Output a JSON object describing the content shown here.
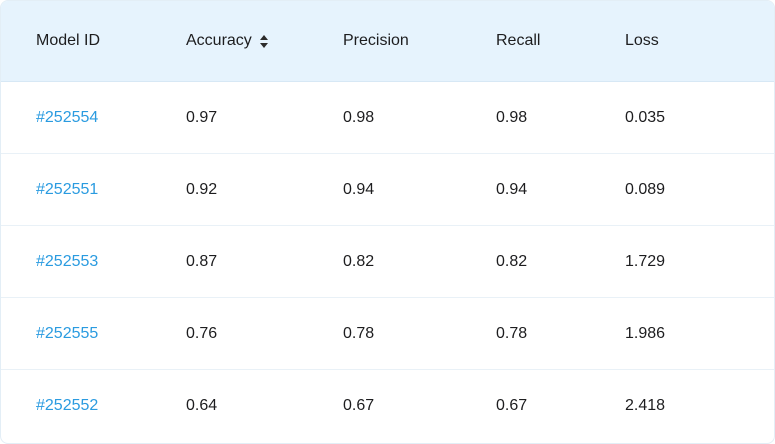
{
  "table": {
    "columns": [
      {
        "label": "Model ID",
        "sortable": false
      },
      {
        "label": "Accuracy",
        "sortable": true
      },
      {
        "label": "Precision",
        "sortable": false
      },
      {
        "label": "Recall",
        "sortable": false
      },
      {
        "label": "Loss",
        "sortable": false
      }
    ],
    "rows": [
      {
        "model_id": "#252554",
        "accuracy": "0.97",
        "precision": "0.98",
        "recall": "0.98",
        "loss": "0.035"
      },
      {
        "model_id": "#252551",
        "accuracy": "0.92",
        "precision": "0.94",
        "recall": "0.94",
        "loss": "0.089"
      },
      {
        "model_id": "#252553",
        "accuracy": "0.87",
        "precision": "0.82",
        "recall": "0.82",
        "loss": "1.729"
      },
      {
        "model_id": "#252555",
        "accuracy": "0.76",
        "precision": "0.78",
        "recall": "0.78",
        "loss": "1.986"
      },
      {
        "model_id": "#252552",
        "accuracy": "0.64",
        "precision": "0.67",
        "recall": "0.67",
        "loss": "2.418"
      }
    ]
  },
  "colors": {
    "header_background": "#e6f3fd",
    "link": "#2a9be0",
    "text": "#1d1d1f",
    "row_divider": "#e9f1f7"
  },
  "icons": {
    "sort": "sort-icon"
  }
}
